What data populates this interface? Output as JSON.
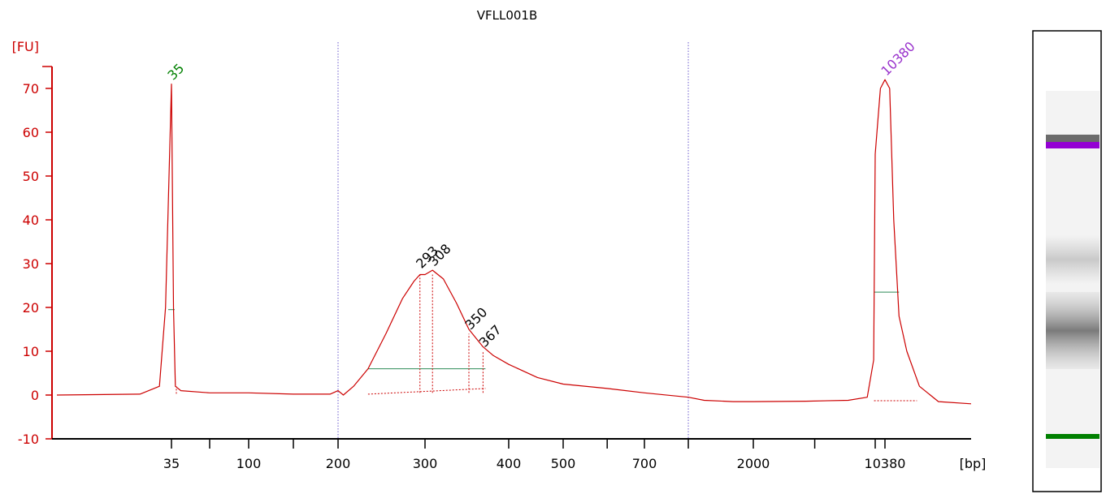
{
  "chart_data": {
    "type": "line",
    "title": "VFLL001B",
    "ylabel": "[FU]",
    "xlabel": "[bp]",
    "ylim": [
      -10,
      75
    ],
    "yticks": [
      -10,
      0,
      10,
      20,
      30,
      40,
      50,
      60,
      70
    ],
    "xtick_labels": [
      "35",
      "100",
      "200",
      "300",
      "400",
      "500",
      "700",
      "2000",
      "10380"
    ],
    "peak_labels": [
      {
        "label": "35",
        "bp": 35,
        "fu": 71,
        "color": "#008000"
      },
      {
        "label": "10380",
        "bp": 10380,
        "fu": 72,
        "color": "#9932cc"
      },
      {
        "label": "293",
        "bp": 293,
        "fu": 28
      },
      {
        "label": "308",
        "bp": 308,
        "fu": 28.5
      },
      {
        "label": "350",
        "bp": 350,
        "fu": 14
      },
      {
        "label": "367",
        "bp": 367,
        "fu": 10
      }
    ],
    "series": [
      {
        "color": "#cc0000",
        "x": [
          20,
          30,
          33,
          34,
          35,
          36,
          37,
          40,
          60,
          100,
          150,
          190,
          200,
          205,
          215,
          230,
          250,
          270,
          285,
          293,
          300,
          308,
          320,
          335,
          350,
          367,
          380,
          400,
          450,
          500,
          600,
          700,
          800,
          1000,
          1500,
          2000,
          4000,
          7000,
          9000,
          9800,
          10000,
          10200,
          10380,
          10550,
          10700,
          10900,
          11200,
          11700,
          12500,
          14000
        ],
        "y": [
          0,
          0.2,
          2,
          20,
          71,
          20,
          2,
          1,
          0.5,
          0.5,
          0.2,
          0.2,
          1,
          0,
          2,
          6,
          14,
          22,
          26,
          27.5,
          27.5,
          28.5,
          26.5,
          21,
          15,
          11,
          9,
          7,
          4,
          2.5,
          1.5,
          0.5,
          -0.5,
          -1.2,
          -1.5,
          -1.5,
          -1.4,
          -1.2,
          -0.5,
          8,
          55,
          70,
          72,
          70,
          40,
          18,
          10,
          2,
          -1.5,
          -2
        ]
      }
    ],
    "gel_lane": {
      "marker_colors": [
        "#9400d3",
        "#008000"
      ]
    },
    "grid": false,
    "legend": "none"
  }
}
